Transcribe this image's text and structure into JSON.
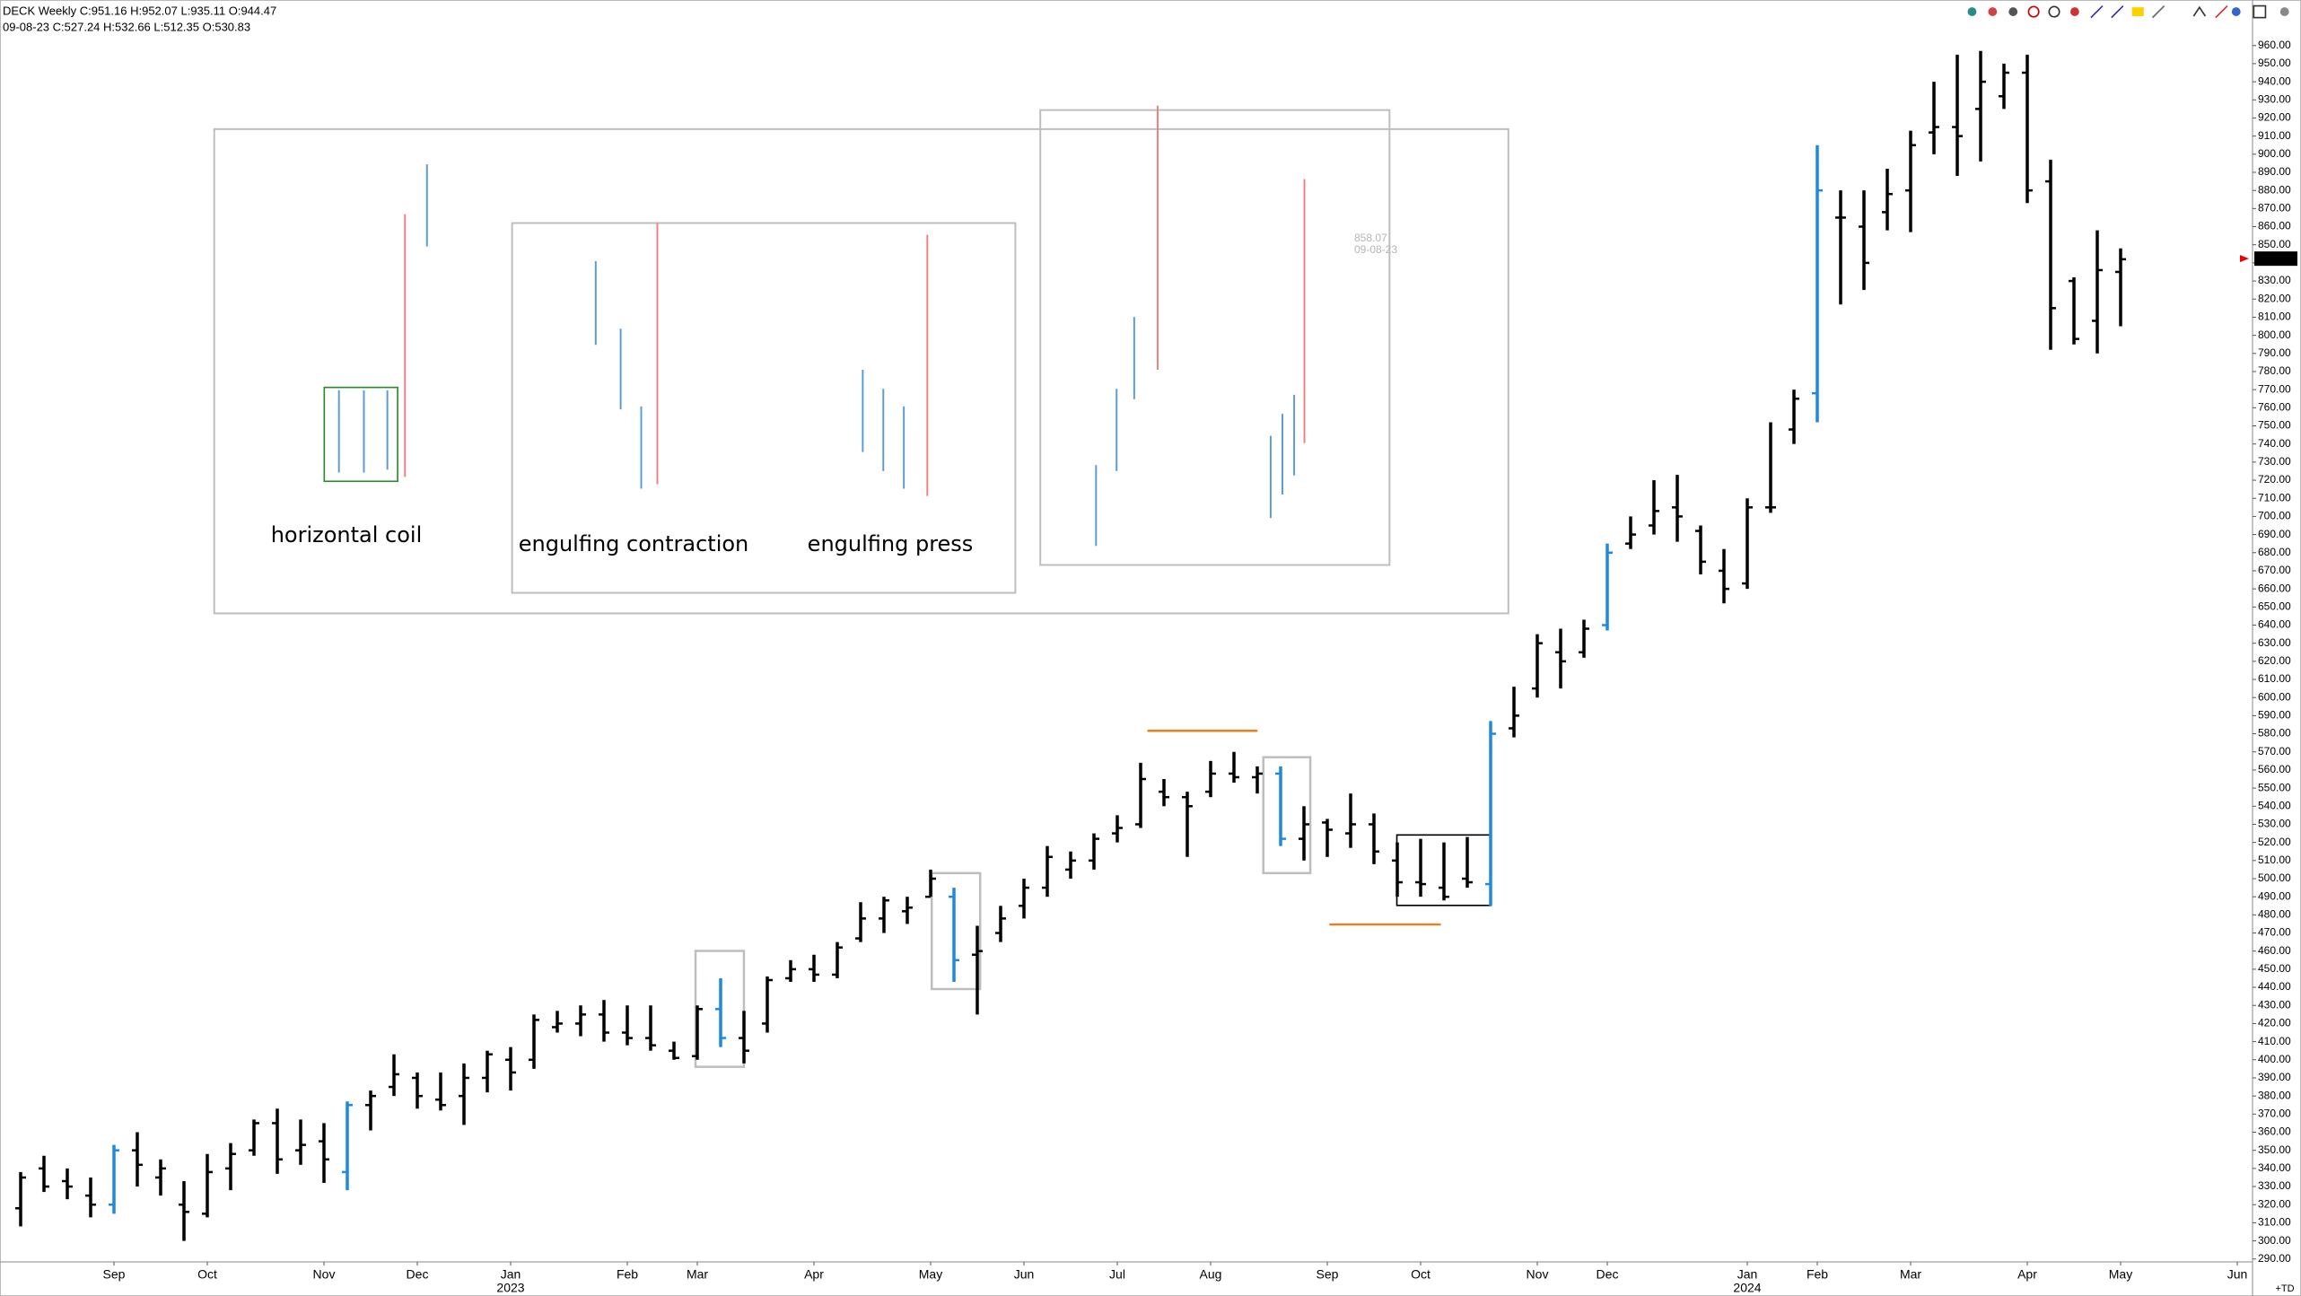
{
  "chart_data": {
    "type": "ohlc",
    "title": "DECK Weekly C:951.16 H:952.07 L:935.11 O:944.47",
    "subtitle": "09-08-23 C:527.24 H:532.66 L:512.35 O:530.83",
    "annotations": [
      "858.07",
      "09-08-23"
    ],
    "pattern_labels": [
      "horizontal coil",
      "engulfing contraction",
      "engulfing press"
    ],
    "corner_label": "+TD",
    "last_price": 842.34,
    "categories": [
      null,
      null,
      null,
      null,
      "Sep",
      null,
      null,
      null,
      "Oct",
      null,
      null,
      null,
      null,
      "Nov",
      null,
      null,
      null,
      "Dec",
      null,
      null,
      null,
      "Jan",
      null,
      null,
      null,
      null,
      "Feb",
      null,
      null,
      "Mar",
      null,
      null,
      null,
      null,
      "Apr",
      null,
      null,
      null,
      null,
      "May",
      null,
      null,
      null,
      "Jun",
      null,
      null,
      null,
      "Jul",
      null,
      null,
      null,
      "Aug",
      null,
      null,
      null,
      null,
      "Sep",
      null,
      null,
      null,
      "Oct",
      null,
      null,
      null,
      null,
      "Nov",
      null,
      null,
      "Dec",
      null,
      null,
      null,
      null,
      null,
      "Jan",
      null,
      null,
      "Feb",
      null,
      null,
      null,
      "Mar",
      null,
      null,
      null,
      null,
      "Apr",
      null,
      null,
      null,
      "May",
      null,
      null,
      null,
      null,
      "Jun"
    ],
    "year_labels": [
      null,
      null,
      null,
      null,
      null,
      null,
      null,
      null,
      null,
      null,
      null,
      null,
      null,
      null,
      null,
      null,
      null,
      null,
      null,
      null,
      null,
      "2023",
      null,
      null,
      null,
      null,
      null,
      null,
      null,
      null,
      null,
      null,
      null,
      null,
      null,
      null,
      null,
      null,
      null,
      null,
      null,
      null,
      null,
      null,
      null,
      null,
      null,
      null,
      null,
      null,
      null,
      null,
      null,
      null,
      null,
      null,
      null,
      null,
      null,
      null,
      null,
      null,
      null,
      null,
      null,
      null,
      null,
      null,
      null,
      null,
      null,
      null,
      null,
      null,
      "2024",
      null,
      null,
      null,
      null,
      null,
      null,
      null,
      null,
      null,
      null,
      null,
      null,
      null,
      null,
      null,
      null,
      null,
      null,
      null,
      null,
      null
    ],
    "open": [
      318,
      340,
      333,
      325,
      320,
      350,
      335,
      320,
      315,
      340,
      350,
      365,
      350,
      355,
      338,
      375,
      385,
      390,
      378,
      380,
      390,
      400,
      400,
      418,
      420,
      425,
      415,
      412,
      405,
      402,
      428,
      412,
      420,
      445,
      450,
      447,
      467,
      478,
      482,
      490,
      490,
      458,
      470,
      485,
      495,
      505,
      510,
      525,
      530,
      548,
      545,
      548,
      558,
      556,
      558,
      522,
      531,
      525,
      530,
      510,
      498,
      495,
      500,
      497,
      583,
      605,
      625,
      625,
      640,
      685,
      695,
      705,
      692,
      670,
      663,
      705,
      748,
      768,
      865,
      860,
      868,
      880,
      912,
      915,
      925,
      932,
      945,
      885,
      830,
      808,
      835,
      null,
      null,
      null,
      null,
      null
    ],
    "high": [
      338,
      347,
      340,
      335,
      353,
      360,
      345,
      333,
      348,
      354,
      367,
      373,
      367,
      365,
      377,
      383,
      403,
      393,
      393,
      398,
      405,
      407,
      425,
      427,
      430,
      433,
      430,
      430,
      410,
      430,
      445,
      427,
      446,
      455,
      458,
      465,
      487,
      490,
      490,
      505,
      495,
      474,
      485,
      500,
      518,
      515,
      525,
      535,
      564,
      555,
      548,
      565,
      570,
      562,
      562,
      540,
      533,
      547,
      536,
      520,
      522,
      520,
      523,
      587,
      606,
      635,
      638,
      643,
      685,
      700,
      720,
      723,
      695,
      682,
      710,
      752,
      770,
      905,
      880,
      880,
      892,
      913,
      940,
      955,
      957,
      950,
      955,
      897,
      832,
      858,
      848,
      null,
      null,
      null,
      null,
      null
    ],
    "low": [
      308,
      327,
      323,
      313,
      315,
      330,
      325,
      300,
      313,
      328,
      347,
      337,
      342,
      332,
      328,
      361,
      380,
      373,
      372,
      364,
      382,
      383,
      395,
      415,
      413,
      410,
      408,
      405,
      400,
      400,
      407,
      398,
      415,
      443,
      443,
      445,
      465,
      470,
      475,
      490,
      443,
      425,
      465,
      478,
      490,
      500,
      505,
      520,
      528,
      540,
      512,
      545,
      553,
      547,
      518,
      510,
      512,
      517,
      508,
      490,
      490,
      488,
      495,
      485,
      578,
      600,
      605,
      622,
      637,
      682,
      690,
      686,
      668,
      652,
      660,
      702,
      740,
      752,
      817,
      825,
      858,
      857,
      900,
      888,
      896,
      925,
      873,
      792,
      795,
      790,
      805,
      null,
      null,
      null,
      null,
      null
    ],
    "close": [
      335,
      330,
      330,
      320,
      350,
      342,
      340,
      316,
      338,
      348,
      365,
      345,
      353,
      345,
      375,
      380,
      392,
      380,
      375,
      390,
      403,
      393,
      422,
      420,
      425,
      415,
      412,
      408,
      401,
      428,
      412,
      405,
      444,
      450,
      447,
      462,
      478,
      488,
      484,
      500,
      455,
      460,
      478,
      495,
      512,
      510,
      522,
      528,
      555,
      545,
      540,
      558,
      556,
      558,
      522,
      530,
      527,
      530,
      515,
      498,
      497,
      490,
      498,
      580,
      590,
      630,
      620,
      638,
      680,
      690,
      703,
      700,
      675,
      660,
      705,
      705,
      765,
      880,
      865,
      840,
      878,
      905,
      915,
      910,
      940,
      945,
      880,
      815,
      798,
      836,
      842,
      null,
      null,
      null,
      null,
      null
    ],
    "colors": [
      "#000",
      "#000",
      "#000",
      "#000",
      "#1e88e5",
      "#000",
      "#000",
      "#000",
      "#000",
      "#000",
      "#000",
      "#000",
      "#000",
      "#000",
      "#1e88e5",
      "#000",
      "#000",
      "#000",
      "#000",
      "#000",
      "#000",
      "#000",
      "#000",
      "#000",
      "#000",
      "#000",
      "#000",
      "#000",
      "#000",
      "#000",
      "#1e88e5",
      "#000",
      "#000",
      "#000",
      "#000",
      "#000",
      "#000",
      "#000",
      "#000",
      "#000",
      "#1e88e5",
      "#000",
      "#000",
      "#000",
      "#000",
      "#000",
      "#000",
      "#000",
      "#000",
      "#000",
      "#000",
      "#000",
      "#000",
      "#000",
      "#1e88e5",
      "#000",
      "#000",
      "#000",
      "#000",
      "#000",
      "#000",
      "#000",
      "#000",
      "#1e88e5",
      "#000",
      "#000",
      "#000",
      "#000",
      "#1e88e5",
      "#000",
      "#000",
      "#000",
      "#000",
      "#000",
      "#000",
      "#000",
      "#000",
      "#1e88e5",
      "#000",
      "#000",
      "#000",
      "#000",
      "#000",
      "#000",
      "#000",
      "#000",
      "#000",
      "#000",
      "#000",
      "#000",
      "#000",
      null,
      null,
      null,
      null,
      null
    ],
    "ylim": [
      288,
      962
    ],
    "yticks": [
      {
        "value": 290,
        "label": "290.00"
      },
      {
        "value": 300,
        "label": "300.00"
      },
      {
        "value": 310,
        "label": "310.00"
      },
      {
        "value": 320,
        "label": "320.00"
      },
      {
        "value": 330,
        "label": "330.00"
      },
      {
        "value": 340,
        "label": "340.00"
      },
      {
        "value": 350,
        "label": "350.00"
      },
      {
        "value": 360,
        "label": "360.00"
      },
      {
        "value": 370,
        "label": "370.00"
      },
      {
        "value": 380,
        "label": "380.00"
      },
      {
        "value": 390,
        "label": "390.00"
      },
      {
        "value": 400,
        "label": "400.00"
      },
      {
        "value": 410,
        "label": "410.00"
      },
      {
        "value": 420,
        "label": "420.00"
      },
      {
        "value": 430,
        "label": "430.00"
      },
      {
        "value": 440,
        "label": "440.00"
      },
      {
        "value": 450,
        "label": "450.00"
      },
      {
        "value": 460,
        "label": "460.00"
      },
      {
        "value": 470,
        "label": "470.00"
      },
      {
        "value": 480,
        "label": "480.00"
      },
      {
        "value": 490,
        "label": "490.00"
      },
      {
        "value": 500,
        "label": "500.00"
      },
      {
        "value": 510,
        "label": "510.00"
      },
      {
        "value": 520,
        "label": "520.00"
      },
      {
        "value": 530,
        "label": "530.00"
      },
      {
        "value": 540,
        "label": "540.00"
      },
      {
        "value": 550,
        "label": "550.00"
      },
      {
        "value": 560,
        "label": "560.00"
      },
      {
        "value": 570,
        "label": "570.00"
      },
      {
        "value": 580,
        "label": "580.00"
      },
      {
        "value": 590,
        "label": "590.00"
      },
      {
        "value": 600,
        "label": "600.00"
      },
      {
        "value": 610,
        "label": "610.00"
      },
      {
        "value": 620,
        "label": "620.00"
      },
      {
        "value": 630,
        "label": "630.00"
      },
      {
        "value": 640,
        "label": "640.00"
      },
      {
        "value": 650,
        "label": "650.00"
      },
      {
        "value": 660,
        "label": "660.00"
      },
      {
        "value": 670,
        "label": "670.00"
      },
      {
        "value": 680,
        "label": "680.00"
      },
      {
        "value": 690,
        "label": "690.00"
      },
      {
        "value": 700,
        "label": "700.00"
      },
      {
        "value": 710,
        "label": "710.00"
      },
      {
        "value": 720,
        "label": "720.00"
      },
      {
        "value": 730,
        "label": "730.00"
      },
      {
        "value": 740,
        "label": "740.00"
      },
      {
        "value": 750,
        "label": "750.00"
      },
      {
        "value": 760,
        "label": "760.00"
      },
      {
        "value": 770,
        "label": "770.00"
      },
      {
        "value": 780,
        "label": "780.00"
      },
      {
        "value": 790,
        "label": "790.00"
      },
      {
        "value": 800,
        "label": "800.00"
      },
      {
        "value": 810,
        "label": "810.00"
      },
      {
        "value": 820,
        "label": "820.00"
      },
      {
        "value": 830,
        "label": "830.00"
      },
      {
        "value": 840,
        "label": "840.00"
      },
      {
        "value": 850,
        "label": "850.00"
      },
      {
        "value": 860,
        "label": "860.00"
      },
      {
        "value": 870,
        "label": "870.00"
      },
      {
        "value": 880,
        "label": "880.00"
      },
      {
        "value": 890,
        "label": "890.00"
      },
      {
        "value": 900,
        "label": "900.00"
      },
      {
        "value": 910,
        "label": "910.00"
      },
      {
        "value": 920,
        "label": "920.00"
      },
      {
        "value": 930,
        "label": "930.00"
      },
      {
        "value": 940,
        "label": "940.00"
      },
      {
        "value": 950,
        "label": "950.00"
      },
      {
        "value": 960,
        "label": "960.00"
      }
    ],
    "grid": false
  }
}
